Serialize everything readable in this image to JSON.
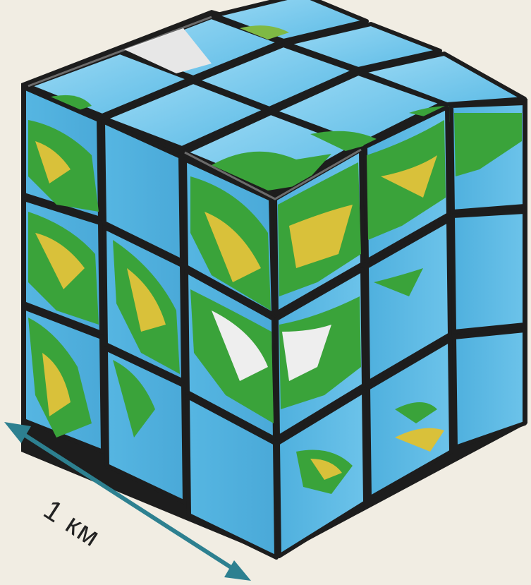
{
  "scale": {
    "label": "1 км"
  },
  "colors": {
    "background": "#f1ede3",
    "ocean": "#5cbbe6",
    "ocean_light": "#8ed3f2",
    "land_green": "#3aa33a",
    "land_yellow": "#d9c13a",
    "land_white": "#eeeeee",
    "plastic_gap": "#1d1d1d",
    "arrow": "#2d8090"
  },
  "icons": {
    "cube": "rubiks-cube-globe",
    "arrow": "double-headed-arrow"
  }
}
